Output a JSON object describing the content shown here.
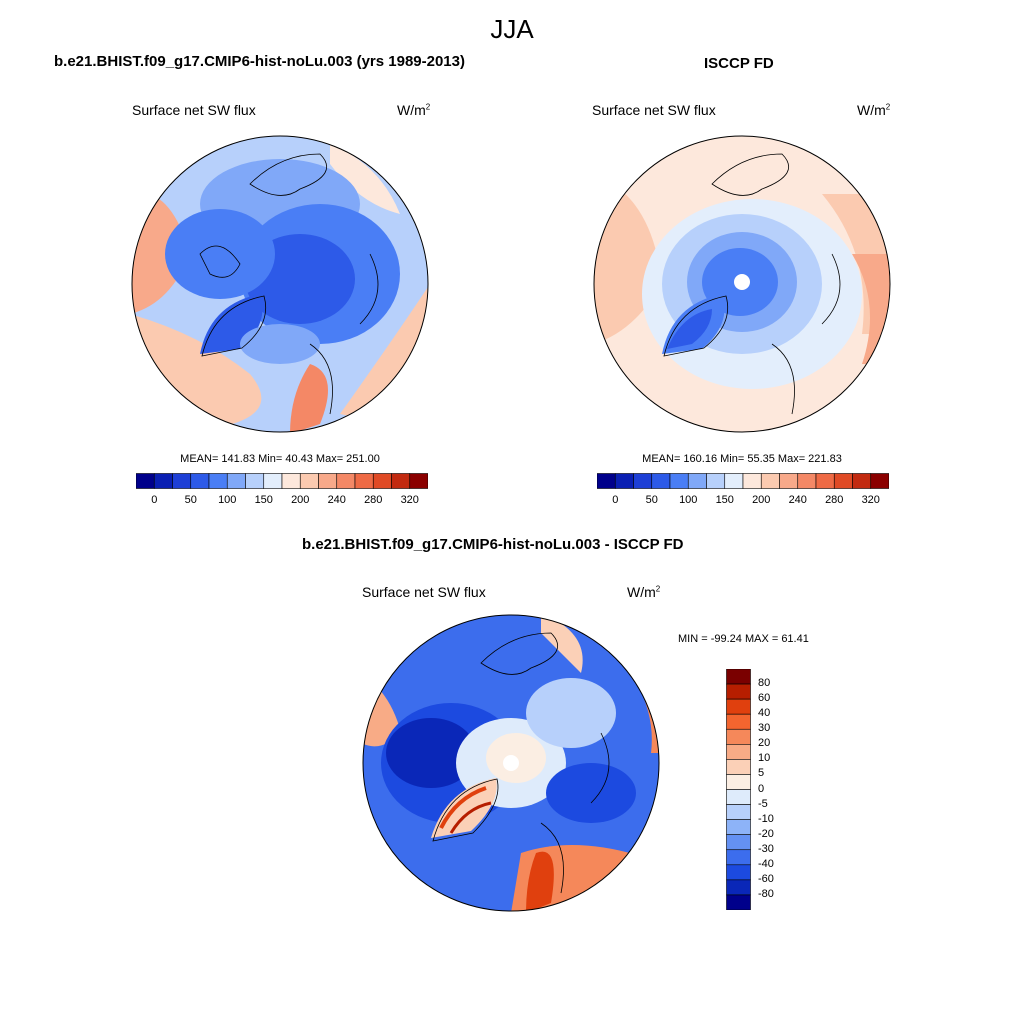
{
  "figure": {
    "title": "JJA"
  },
  "panels": [
    {
      "title": "b.e21.BHIST.f09_g17.CMIP6-hist-noLu.003 (yrs 1989-2013)",
      "variable": "Surface net SW flux",
      "units": "W/m",
      "units_exp": "2",
      "stats": "MEAN= 141.83  Min=  40.43  Max= 251.00",
      "mean": 141.83,
      "min": 40.43,
      "max": 251.0
    },
    {
      "title": "ISCCP FD",
      "variable": "Surface net SW flux",
      "units": "W/m",
      "units_exp": "2",
      "stats": "MEAN= 160.16  Min=  55.35  Max= 221.83",
      "mean": 160.16,
      "min": 55.35,
      "max": 221.83
    },
    {
      "title": "b.e21.BHIST.f09_g17.CMIP6-hist-noLu.003 - ISCCP FD",
      "variable": "Surface net SW flux",
      "units": "W/m",
      "units_exp": "2",
      "stats": "MIN = -99.24 MAX =  61.41",
      "min": -99.24,
      "max": 61.41
    }
  ],
  "colorbar_main": {
    "labels": [
      "0",
      "50",
      "100",
      "150",
      "200",
      "240",
      "280",
      "320"
    ],
    "colors": [
      "#00008b",
      "#0a1fb3",
      "#1e3fd6",
      "#2d5ae8",
      "#4a7ef5",
      "#80a8f8",
      "#b7d0fb",
      "#e3eefc",
      "#fde8dc",
      "#fbcab0",
      "#f8a98a",
      "#f48866",
      "#ef6a45",
      "#e04a25",
      "#c22a10",
      "#8b0000"
    ]
  },
  "colorbar_diff": {
    "labels": [
      "80",
      "60",
      "40",
      "30",
      "20",
      "10",
      "5",
      "0",
      "-5",
      "-10",
      "-20",
      "-30",
      "-40",
      "-60",
      "-80"
    ],
    "colors": [
      "#7a0000",
      "#b61e00",
      "#e0400e",
      "#f3652f",
      "#f5885a",
      "#f8ab86",
      "#fbd0b7",
      "#fbeee3",
      "#deebfb",
      "#b7d0fb",
      "#8db3f8",
      "#6491f3",
      "#3c6ded",
      "#1c4ae0",
      "#0a27b8",
      "#00008b"
    ]
  }
}
